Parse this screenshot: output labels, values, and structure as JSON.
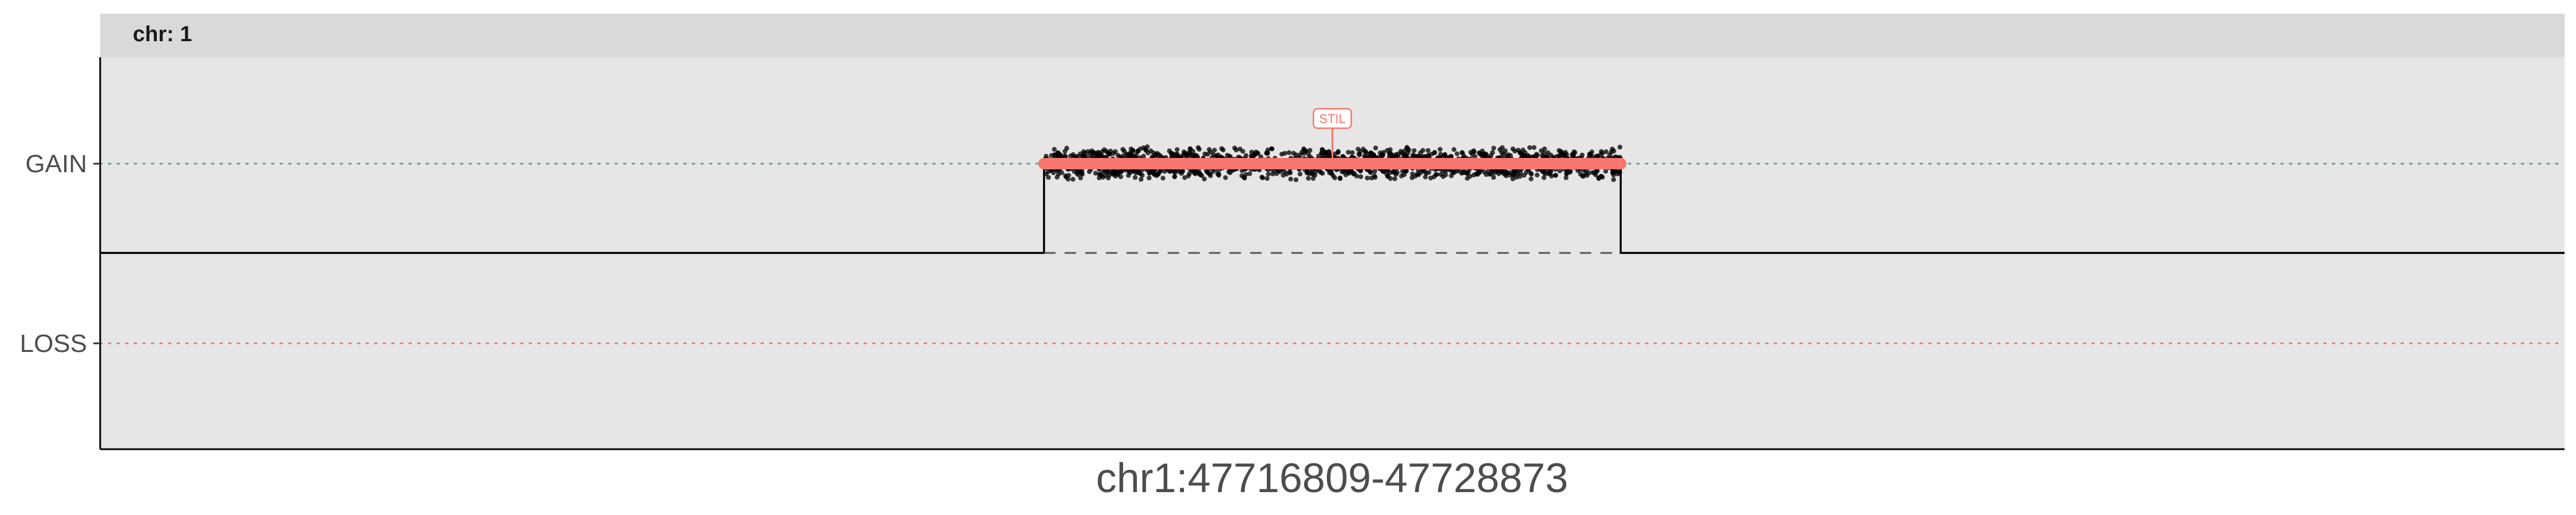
{
  "chart_data": {
    "type": "scatter",
    "facet_label": "chr: 1",
    "xlabel": "chr1:47716809-47728873",
    "ylabel": "",
    "y_categories": [
      "GAIN",
      "LOSS"
    ],
    "x_range": [
      0,
      1
    ],
    "segment": {
      "state": "GAIN",
      "x_start": 0.383,
      "x_end": 0.617,
      "segment_color": "#F8766D",
      "point_color": "#000000",
      "annotation": "STIL",
      "annotation_x": 0.5
    },
    "baseline_step": {
      "baseline_state": "neutral",
      "raised_state": "GAIN",
      "step_start": 0.383,
      "step_end": 0.617
    },
    "reference_lines": [
      {
        "state": "GAIN",
        "color": "#5F9EA0",
        "style": "dotted"
      },
      {
        "state": "LOSS",
        "color": "#E07A7A",
        "style": "dotted"
      }
    ],
    "grid": false,
    "legend": "none",
    "panel_background": "#E6E6E6",
    "strip_background": "#D9D9D9"
  }
}
